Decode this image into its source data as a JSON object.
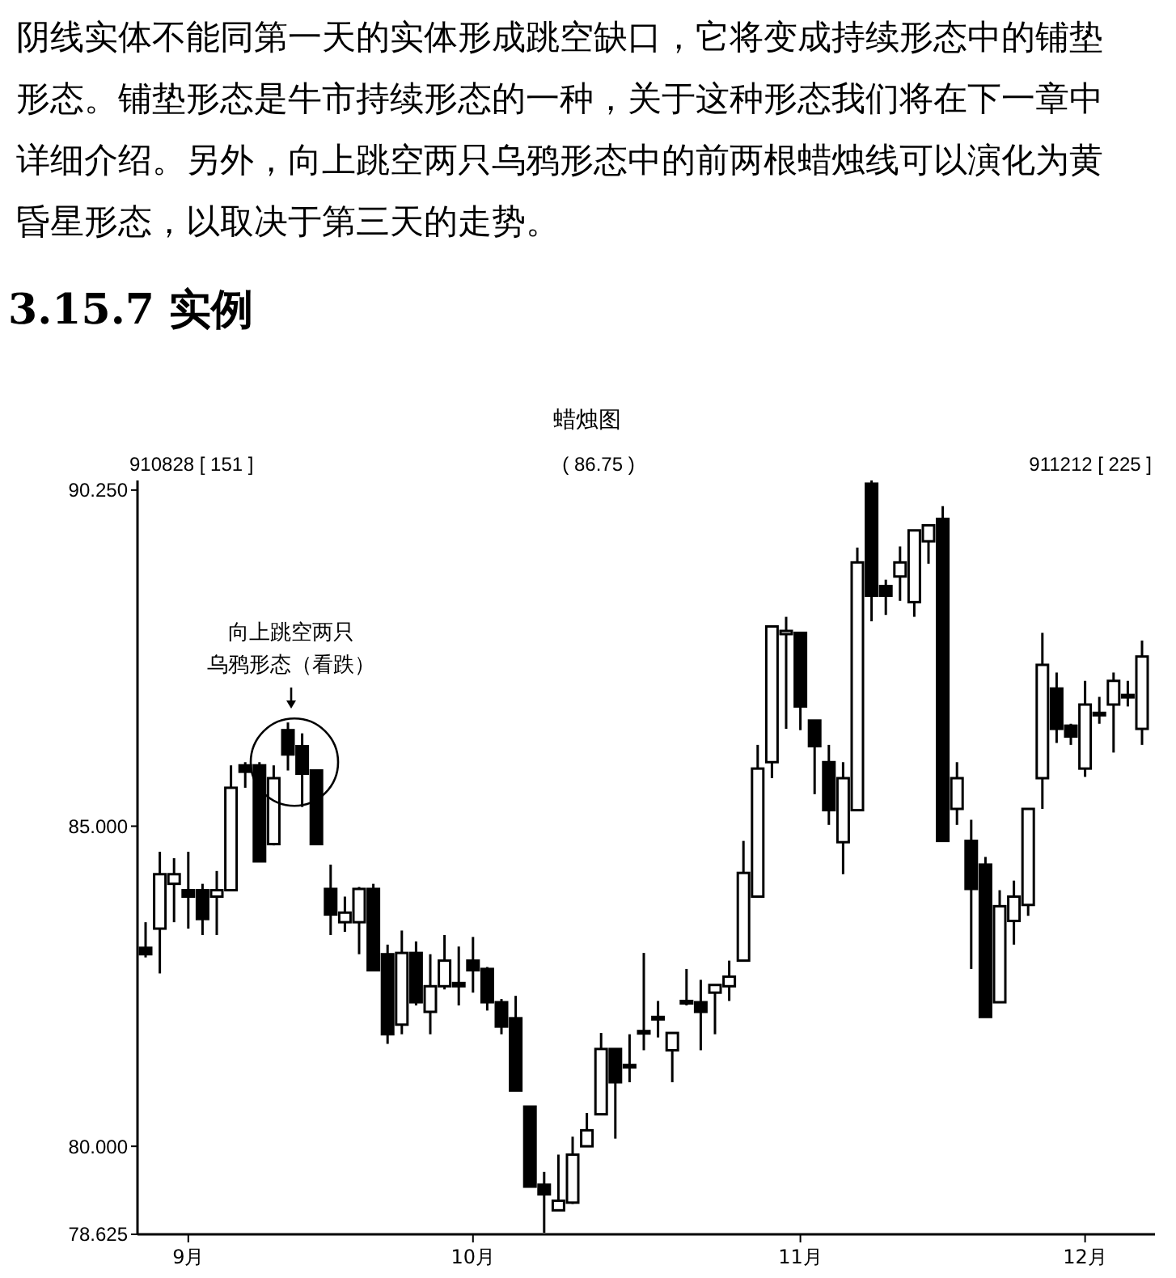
{
  "chart_data": {
    "type": "candlestick",
    "title": "蜡烛图",
    "annotations": [
      "阴线实体不能同第一天的实体形成跳空缺口，它将变成持续形态中的铺垫",
      "形态。铺垫形态是牛市持续形态的一种，关于这种形态我们将在下一章中",
      "详细介绍。另外，向上跳空两只乌鸦形态中的前两根蜡烛线可以演化为黄",
      "昏星形态，以取决于第三天的走势。",
      "3.15.7 实例",
      "910828 [ 151 ]",
      "( 86.75 )",
      "911212 [ 225 ]",
      "向上跳空两只",
      "乌鸦形态（看跌）"
    ],
    "categories": [
      null,
      null,
      null,
      "9月",
      null,
      null,
      null,
      null,
      null,
      null,
      null,
      null,
      null,
      null,
      null,
      null,
      null,
      null,
      null,
      null,
      null,
      null,
      null,
      "10月",
      null,
      null,
      null,
      null,
      null,
      null,
      null,
      null,
      null,
      null,
      null,
      null,
      null,
      null,
      null,
      null,
      null,
      null,
      null,
      null,
      null,
      null,
      "11月",
      null,
      null,
      null,
      null,
      null,
      null,
      null,
      null,
      null,
      null,
      null,
      null,
      null,
      null,
      null,
      null,
      null,
      null,
      null,
      "12月",
      null,
      null,
      null,
      null
    ],
    "color": "#000000",
    "ohlc": [
      [
        83.1,
        83.5,
        82.95,
        83.0
      ],
      [
        83.4,
        84.6,
        82.7,
        84.25
      ],
      [
        84.1,
        84.5,
        83.5,
        84.25
      ],
      [
        84.0,
        84.6,
        83.4,
        83.9
      ],
      [
        84.0,
        84.1,
        83.3,
        83.55
      ],
      [
        83.9,
        84.3,
        83.3,
        84.0
      ],
      [
        84.0,
        85.95,
        84.0,
        85.6
      ],
      [
        85.95,
        86.0,
        85.6,
        85.85
      ],
      [
        85.95,
        86.0,
        84.45,
        84.45
      ],
      [
        84.72,
        85.95,
        84.7,
        85.75
      ],
      [
        86.5,
        86.62,
        85.87,
        86.12
      ],
      [
        86.25,
        86.45,
        85.3,
        85.82
      ],
      [
        85.87,
        85.87,
        84.72,
        84.72
      ],
      [
        84.02,
        84.4,
        83.3,
        83.62
      ],
      [
        83.5,
        83.9,
        83.35,
        83.65
      ],
      [
        83.5,
        84.05,
        83.0,
        84.02
      ],
      [
        84.02,
        84.1,
        82.75,
        82.75
      ],
      [
        83.0,
        83.15,
        81.6,
        81.75
      ],
      [
        81.9,
        83.37,
        81.75,
        83.02
      ],
      [
        83.02,
        83.2,
        82.2,
        82.25
      ],
      [
        82.1,
        83.0,
        81.75,
        82.5
      ],
      [
        82.5,
        83.3,
        82.45,
        82.9
      ],
      [
        82.55,
        83.12,
        82.2,
        82.5
      ],
      [
        82.9,
        83.27,
        82.4,
        82.75
      ],
      [
        82.77,
        82.8,
        82.12,
        82.25
      ],
      [
        82.25,
        82.3,
        81.75,
        81.87
      ],
      [
        82.0,
        82.35,
        80.87,
        80.87
      ],
      [
        80.62,
        80.62,
        79.37,
        79.37
      ],
      [
        79.4,
        79.6,
        78.65,
        79.25
      ],
      [
        79.0,
        79.87,
        79.0,
        79.15
      ],
      [
        79.12,
        80.15,
        79.1,
        79.87
      ],
      [
        80.0,
        80.52,
        80.0,
        80.25
      ],
      [
        80.5,
        81.77,
        80.5,
        81.52
      ],
      [
        81.52,
        81.52,
        80.12,
        81.0
      ],
      [
        81.27,
        81.75,
        81.0,
        81.25
      ],
      [
        81.77,
        83.02,
        81.5,
        81.8
      ],
      [
        82.0,
        82.27,
        81.7,
        82.02
      ],
      [
        81.5,
        81.77,
        81.0,
        81.77
      ],
      [
        82.25,
        82.77,
        82.2,
        82.27
      ],
      [
        82.25,
        82.6,
        81.5,
        82.1
      ],
      [
        82.4,
        82.52,
        81.75,
        82.52
      ],
      [
        82.5,
        82.9,
        82.27,
        82.65
      ],
      [
        82.9,
        84.77,
        82.9,
        84.27
      ],
      [
        83.9,
        86.27,
        83.9,
        85.9
      ],
      [
        86.0,
        88.12,
        85.75,
        88.12
      ],
      [
        88.0,
        88.27,
        86.52,
        88.05
      ],
      [
        88.02,
        88.02,
        86.5,
        86.87
      ],
      [
        86.65,
        86.65,
        85.5,
        86.25
      ],
      [
        86.0,
        86.27,
        85.02,
        85.25
      ],
      [
        84.75,
        86.0,
        84.25,
        85.75
      ],
      [
        85.25,
        89.35,
        85.25,
        89.12
      ],
      [
        90.35,
        90.4,
        88.2,
        88.6
      ],
      [
        88.75,
        88.85,
        88.3,
        88.6
      ],
      [
        88.9,
        89.37,
        88.52,
        89.12
      ],
      [
        88.5,
        89.62,
        88.27,
        89.62
      ],
      [
        89.45,
        89.7,
        89.1,
        89.7
      ],
      [
        89.8,
        90.0,
        84.77,
        84.77
      ],
      [
        85.27,
        86.0,
        85.02,
        85.75
      ],
      [
        84.77,
        85.1,
        82.77,
        84.02
      ],
      [
        84.4,
        84.52,
        82.02,
        82.02
      ],
      [
        82.25,
        84.0,
        82.25,
        83.75
      ],
      [
        83.52,
        84.15,
        83.15,
        83.9
      ],
      [
        83.77,
        85.27,
        83.6,
        85.27
      ],
      [
        85.75,
        88.02,
        85.27,
        87.52
      ],
      [
        87.15,
        87.4,
        86.3,
        86.52
      ],
      [
        86.57,
        86.6,
        86.27,
        86.4
      ],
      [
        85.9,
        87.27,
        85.77,
        86.9
      ],
      [
        86.75,
        87.02,
        86.6,
        86.77
      ],
      [
        86.9,
        87.4,
        86.15,
        87.27
      ],
      [
        87.02,
        87.27,
        86.87,
        87.05
      ],
      [
        86.52,
        87.9,
        86.27,
        87.65
      ]
    ],
    "ylim": [
      78.625,
      90.4
    ],
    "yticks": [
      {
        "value": 90.25,
        "label": "90.250"
      },
      {
        "value": 85,
        "label": "85.000"
      },
      {
        "value": 80,
        "label": "80.000"
      },
      {
        "value": 78.625,
        "label": "78.625"
      }
    ],
    "grid": false
  }
}
